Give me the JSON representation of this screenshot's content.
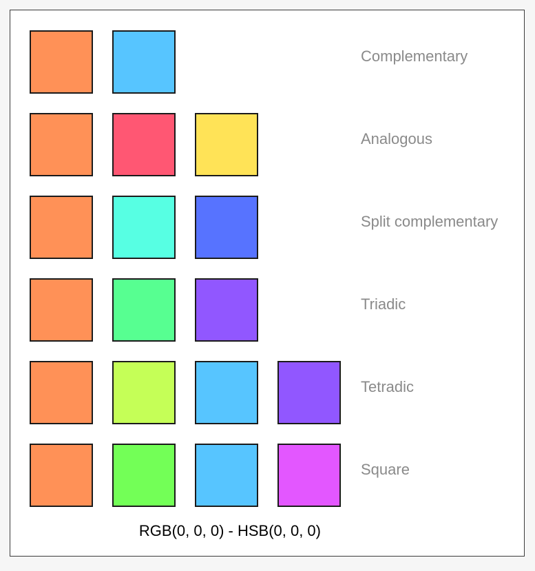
{
  "schemes": [
    {
      "label": "Complementary",
      "swatches": [
        "#FF9157",
        "#57C5FF"
      ]
    },
    {
      "label": "Analogous",
      "swatches": [
        "#FF9157",
        "#FF5773",
        "#FFE357"
      ]
    },
    {
      "label": "Split complementary",
      "swatches": [
        "#FF9157",
        "#57FFE3",
        "#5773FF"
      ]
    },
    {
      "label": "Triadic",
      "swatches": [
        "#FF9157",
        "#57FF91",
        "#9157FF"
      ]
    },
    {
      "label": "Tetradic",
      "swatches": [
        "#FF9157",
        "#C5FF57",
        "#57C5FF",
        "#9157FF"
      ]
    },
    {
      "label": "Square",
      "swatches": [
        "#FF9157",
        "#73FF57",
        "#57C5FF",
        "#E357FF"
      ]
    }
  ],
  "footer": {
    "color_readout": "RGB(0, 0, 0) - HSB(0, 0, 0)"
  }
}
